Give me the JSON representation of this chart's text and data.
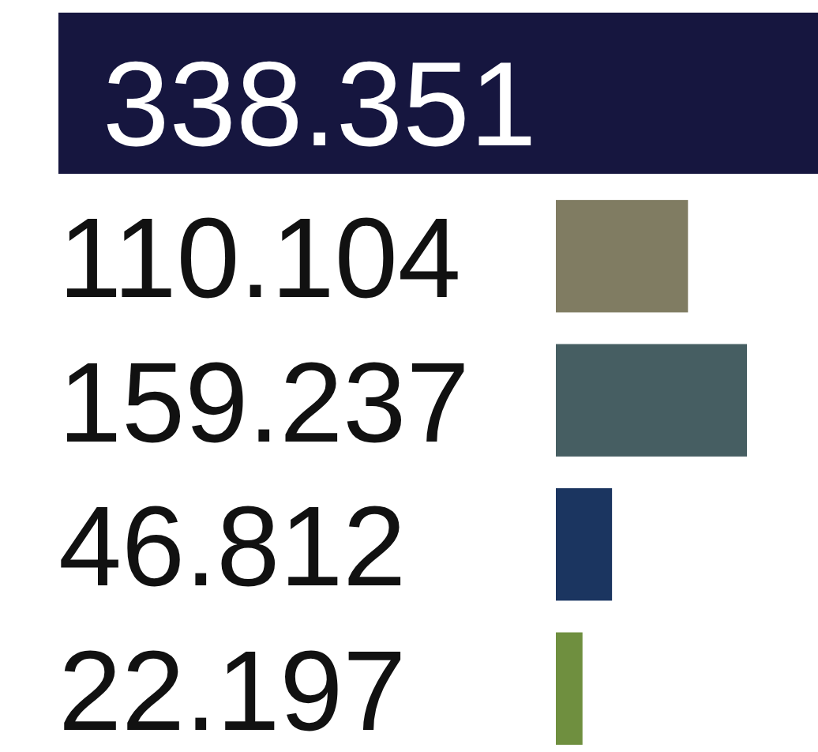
{
  "chart_data": {
    "type": "bar",
    "orientation": "horizontal",
    "title": "338.351",
    "categories": [
      null,
      null,
      null,
      null
    ],
    "values": [
      110.104,
      159.237,
      46.812,
      22.197
    ],
    "colors": [
      "#807c62",
      "#465e62",
      "#1b3560",
      "#6f8f3f"
    ],
    "data_labels": true
  }
}
